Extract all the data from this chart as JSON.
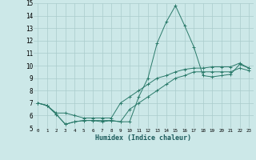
{
  "xlabel": "Humidex (Indice chaleur)",
  "bg_color": "#cce8e8",
  "grid_color": "#aacccc",
  "line_color": "#2a7a6a",
  "xlim": [
    -0.5,
    23.5
  ],
  "ylim": [
    5,
    15
  ],
  "xticks": [
    0,
    1,
    2,
    3,
    4,
    5,
    6,
    7,
    8,
    9,
    10,
    11,
    12,
    13,
    14,
    15,
    16,
    17,
    18,
    19,
    20,
    21,
    22,
    23
  ],
  "yticks": [
    5,
    6,
    7,
    8,
    9,
    10,
    11,
    12,
    13,
    14,
    15
  ],
  "series": [
    [
      7.0,
      6.8,
      6.1,
      5.3,
      5.5,
      5.6,
      5.6,
      5.5,
      5.6,
      5.5,
      5.5,
      7.5,
      9.0,
      11.8,
      13.5,
      14.8,
      13.2,
      11.5,
      9.2,
      9.1,
      9.2,
      9.3,
      10.1,
      9.8
    ],
    [
      7.0,
      6.8,
      6.2,
      6.2,
      6.0,
      5.8,
      5.8,
      5.8,
      5.8,
      7.0,
      7.5,
      8.0,
      8.5,
      9.0,
      9.2,
      9.5,
      9.7,
      9.8,
      9.8,
      9.9,
      9.9,
      9.9,
      10.2,
      9.8
    ],
    [
      7.0,
      6.8,
      6.1,
      5.3,
      5.5,
      5.6,
      5.6,
      5.6,
      5.6,
      5.5,
      6.5,
      7.0,
      7.5,
      8.0,
      8.5,
      9.0,
      9.2,
      9.5,
      9.5,
      9.5,
      9.5,
      9.5,
      9.8,
      9.6
    ]
  ]
}
